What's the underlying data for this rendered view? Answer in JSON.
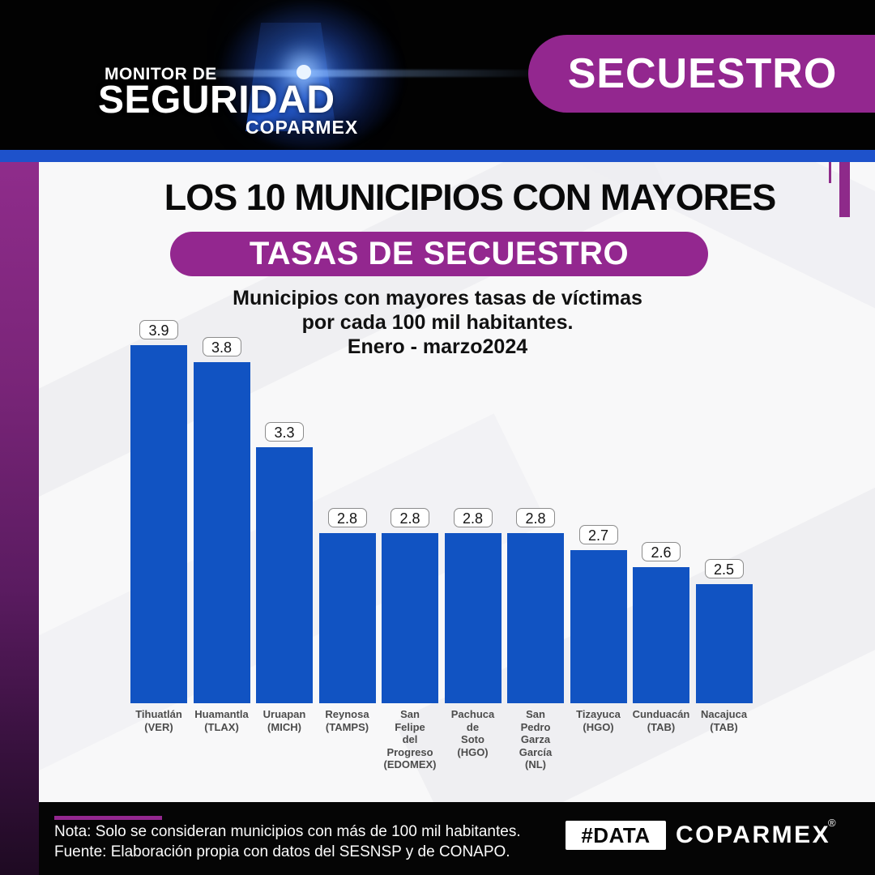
{
  "header": {
    "brand_line1": "MONITOR DE",
    "brand_line2": "SEGURIDAD",
    "brand_line3": "COPARMEX",
    "banner": "SECUESTRO"
  },
  "title": {
    "main": "LOS 10 MUNICIPIOS CON MAYORES",
    "pill": "TASAS DE SECUESTRO"
  },
  "subtitle": "Municipios con mayores tasas de víctimas\npor cada 100 mil habitantes.\nEnero - marzo2024",
  "chart_data": {
    "type": "bar",
    "title": "Municipios con mayores tasas de víctimas por cada 100 mil habitantes. Enero - marzo2024",
    "categories": [
      "Tihuatlán (VER)",
      "Huamantla (TLAX)",
      "Uruapan (MICH)",
      "Reynosa (TAMPS)",
      "San Felipe del Progreso (EDOMEX)",
      "Pachuca de Soto (HGO)",
      "San Pedro Garza García (NL)",
      "Tizayuca (HGO)",
      "Cunduacán (TAB)",
      "Nacajuca (TAB)"
    ],
    "category_lines": [
      [
        "Tihuatlán",
        "(VER)"
      ],
      [
        "Huamantla",
        "(TLAX)"
      ],
      [
        "Uruapan",
        "(MICH)"
      ],
      [
        "Reynosa",
        "(TAMPS)"
      ],
      [
        "San",
        "Felipe",
        "del",
        "Progreso",
        "(EDOMEX)"
      ],
      [
        "Pachuca",
        "de",
        "Soto",
        "(HGO)"
      ],
      [
        "San",
        "Pedro",
        "Garza",
        "García",
        "(NL)"
      ],
      [
        "Tizayuca",
        "(HGO)"
      ],
      [
        "Cunduacán",
        "(TAB)"
      ],
      [
        "Nacajuca",
        "(TAB)"
      ]
    ],
    "values": [
      3.9,
      3.8,
      3.3,
      2.8,
      2.8,
      2.8,
      2.8,
      2.7,
      2.6,
      2.5
    ],
    "value_labels": [
      "3.9",
      "3.8",
      "3.3",
      "2.8",
      "2.8",
      "2.8",
      "2.8",
      "2.7",
      "2.6",
      "2.5"
    ],
    "bar_color": "#1153c2",
    "xlabel": "",
    "ylabel": "",
    "grid": false,
    "legend": false,
    "axis_hidden": true,
    "ylim_estimated": [
      1.8,
      3.9
    ],
    "data_label_style": "boxed above bars"
  },
  "footer": {
    "note": "Nota: Solo se consideran municipios con más de 100 mil habitantes.",
    "source": "Fuente: Elaboración propia con datos del SESNSP y de CONAPO.",
    "logo_hash": "#DATA",
    "logo_brand": "COPARMEX",
    "registered": "®"
  },
  "colors": {
    "brand_purple": "#93278f",
    "bar_blue": "#1153c2",
    "divider_blue": "#1e52cb",
    "header_black": "#020202",
    "content_background": "#f8f8f9",
    "category_text": "#4c4c4c"
  }
}
